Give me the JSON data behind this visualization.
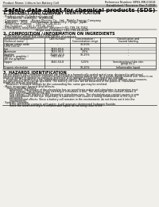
{
  "bg_color": "#f0efea",
  "title": "Safety data sheet for chemical products (SDS)",
  "header_left": "Product Name: Lithium Ion Battery Cell",
  "header_right_line1": "Reference Number: BPES-MR-00018",
  "header_right_line2": "Established / Revision: Dec.7.2018",
  "section1_title": "1. PRODUCT AND COMPANY IDENTIFICATION",
  "section1_items": [
    "· Product name: Lithium Ion Battery Cell",
    "· Product code: Cylindrical-type cell",
    "    (IH18650U, IH18650L, IH18650A)",
    "· Company name:    Benzo Electric Co., Ltd., Mobile Energy Company",
    "· Address:    2021   Kamikamura, Suonoi City, Hyogo, Japan",
    "· Telephone number:    +81-(79)-26-4111",
    "· Fax number:    +81-1-799-26-4120",
    "· Emergency telephone number (daytime)+81-799-26-3562",
    "                                    (Night and holiday) +81-799-26-4120"
  ],
  "section2_title": "2. COMPOSITION / INFORMATION ON INGREDIENTS",
  "section2_sub": "· Substance or preparation: Preparation",
  "section2_sub2": "· Information about the chemical nature of product:",
  "table_rows": [
    [
      "Lithium cobalt oxide\n(LiMn·CoO₂Li)",
      "-",
      "30-60%",
      "-"
    ],
    [
      "Iron",
      "7439-89-6",
      "15-25%",
      "-"
    ],
    [
      "Aluminum",
      "7429-90-5",
      "2-5%",
      "-"
    ],
    [
      "Graphite\n(Metal is graphite-)\n(All the graphite)",
      "77166-42-5\n7782-44-2",
      "10-25%",
      "-"
    ],
    [
      "Copper",
      "7440-50-8",
      "5-15%",
      "Sensitization of the skin\ngroup No.2"
    ],
    [
      "Organic electrolyte",
      "-",
      "10-20%",
      "Inflammable liquid"
    ]
  ],
  "section3_title": "3. HAZARDS IDENTIFICATION",
  "section3_lines": [
    "For the battery cell, chemical materials are stored in a hermetically sealed metal case, designed to withstand",
    "temperatures and (in-service) environmental conditions during normal use. As a result, during normal use, there is no",
    "physical danger of ignition or explosion and there is no danger of hazardous materials leakage.",
    "    However, if exposed to a fire, added mechanical shocks, decomposed, ambient electric without any measures,",
    "the gas release vent can be operated. The battery cell case will be breached of fire patterns. Hazardous",
    "materials may be released.",
    "    Moreover, if heated strongly by the surrounding fire, some gas may be emitted."
  ],
  "section3_bullet1": "· Most important hazard and effects:",
  "section3_human": "    Human health effects:",
  "section3_detail_lines": [
    "        Inhalation: The release of the electrolyte has an anesthesia action and stimulates in respiratory tract.",
    "        Skin contact: The release of the electrolyte stimulates a skin. The electrolyte skin contact causes a",
    "        sore and stimulation on the skin.",
    "        Eye contact: The release of the electrolyte stimulates eyes. The electrolyte eye contact causes a sore",
    "        and stimulation on the eye. Especially, a substance that causes a strong inflammation of the eye is",
    "        contained.",
    "        Environmental effects: Since a battery cell remains in the environment, do not throw out it into the",
    "        environment."
  ],
  "section3_bullet2": "· Specific hazards:",
  "section3_spec_lines": [
    "        If the electrolyte contacts with water, it will generate detrimental hydrogen fluoride.",
    "        Since the used electrolyte is inflammable liquid, do not bring close to fire."
  ]
}
